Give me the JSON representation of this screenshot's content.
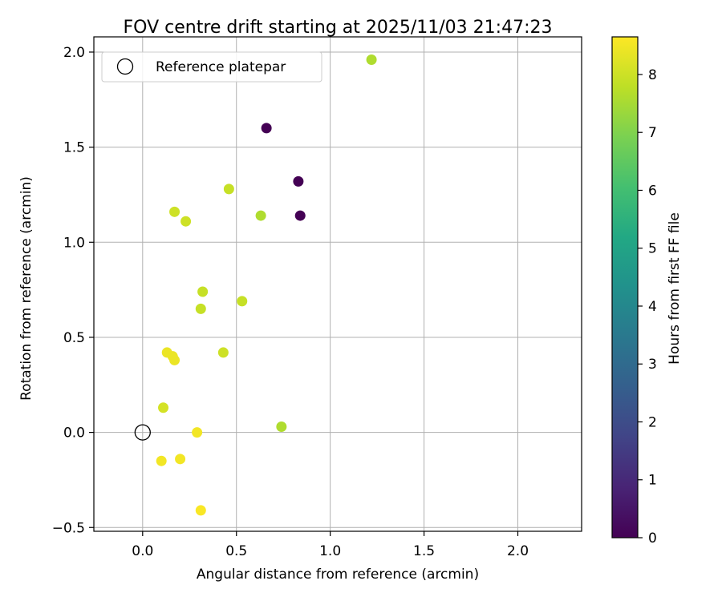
{
  "chart_data": {
    "type": "scatter",
    "title": "FOV centre drift starting at 2025/11/03 21:47:23",
    "xlabel": "Angular distance from reference (arcmin)",
    "ylabel": "Rotation from reference (arcmin)",
    "xlim": [
      -0.26,
      2.34
    ],
    "ylim": [
      -0.52,
      2.08
    ],
    "xticks": [
      0.0,
      0.5,
      1.0,
      1.5,
      2.0
    ],
    "xtick_labels": [
      "0.0",
      "0.5",
      "1.0",
      "1.5",
      "2.0"
    ],
    "yticks": [
      -0.5,
      0.0,
      0.5,
      1.0,
      1.5,
      2.0
    ],
    "ytick_labels": [
      "−0.5",
      "0.0",
      "0.5",
      "1.0",
      "1.5",
      "2.0"
    ],
    "grid": true,
    "legend": {
      "location": "upper-left",
      "entries": [
        "Reference platepar"
      ]
    },
    "reference_point": {
      "x": 0.0,
      "y": 0.0,
      "label": "Reference platepar"
    },
    "colorbar": {
      "label": "Hours from first FF file",
      "colormap": "viridis",
      "range": [
        0,
        8.65
      ],
      "ticks": [
        0,
        1,
        2,
        3,
        4,
        5,
        6,
        7,
        8
      ],
      "tick_labels": [
        "0",
        "1",
        "2",
        "3",
        "4",
        "5",
        "6",
        "7",
        "8"
      ]
    },
    "points": [
      {
        "x": 0.66,
        "y": 1.6,
        "hours": 0.0
      },
      {
        "x": 0.83,
        "y": 1.32,
        "hours": 0.0
      },
      {
        "x": 0.84,
        "y": 1.14,
        "hours": 0.0
      },
      {
        "x": 1.22,
        "y": 1.96,
        "hours": 7.6
      },
      {
        "x": 0.63,
        "y": 1.14,
        "hours": 7.6
      },
      {
        "x": 0.74,
        "y": 0.03,
        "hours": 7.6
      },
      {
        "x": 0.46,
        "y": 1.28,
        "hours": 7.9
      },
      {
        "x": 0.53,
        "y": 0.69,
        "hours": 7.9
      },
      {
        "x": 0.32,
        "y": 0.74,
        "hours": 7.9
      },
      {
        "x": 0.31,
        "y": 0.65,
        "hours": 7.9
      },
      {
        "x": 0.17,
        "y": 1.16,
        "hours": 8.0
      },
      {
        "x": 0.23,
        "y": 1.11,
        "hours": 8.0
      },
      {
        "x": 0.43,
        "y": 0.42,
        "hours": 8.0
      },
      {
        "x": 0.11,
        "y": 0.13,
        "hours": 8.1
      },
      {
        "x": 0.13,
        "y": 0.42,
        "hours": 8.4
      },
      {
        "x": 0.16,
        "y": 0.4,
        "hours": 8.4
      },
      {
        "x": 0.17,
        "y": 0.38,
        "hours": 8.4
      },
      {
        "x": 0.29,
        "y": 0.0,
        "hours": 8.5
      },
      {
        "x": 0.1,
        "y": -0.15,
        "hours": 8.5
      },
      {
        "x": 0.2,
        "y": -0.14,
        "hours": 8.5
      },
      {
        "x": 0.31,
        "y": -0.41,
        "hours": 8.6
      }
    ]
  }
}
